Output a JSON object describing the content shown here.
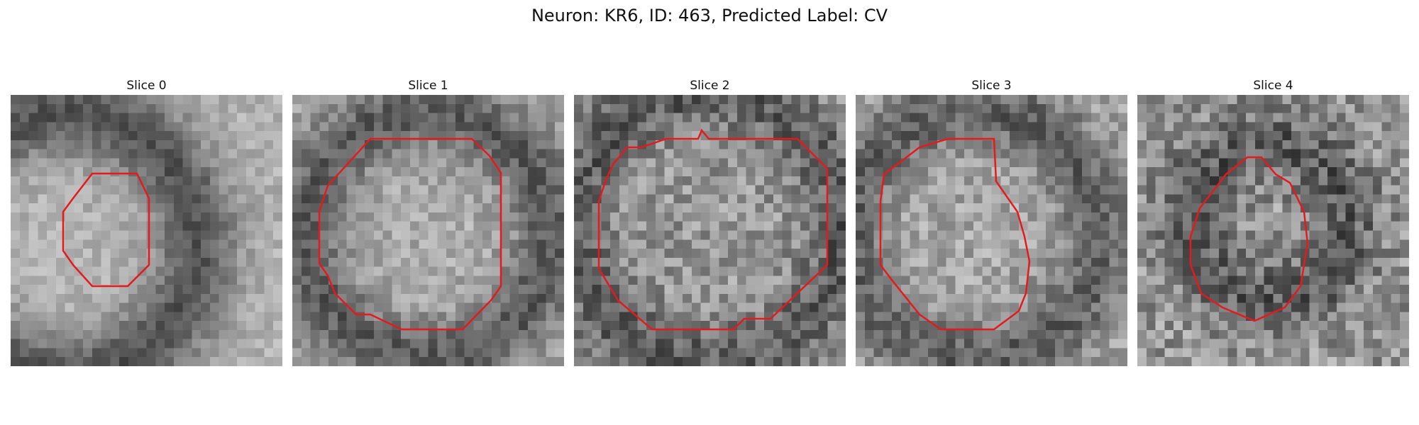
{
  "figure": {
    "title": "Neuron: KR6, ID: 463, Predicted Label: CV",
    "contour_color": "#e41a1c"
  },
  "panels": [
    {
      "title": "Slice 0"
    },
    {
      "title": "Slice 1"
    },
    {
      "title": "Slice 2"
    },
    {
      "title": "Slice 3"
    },
    {
      "title": "Slice 4"
    }
  ]
}
